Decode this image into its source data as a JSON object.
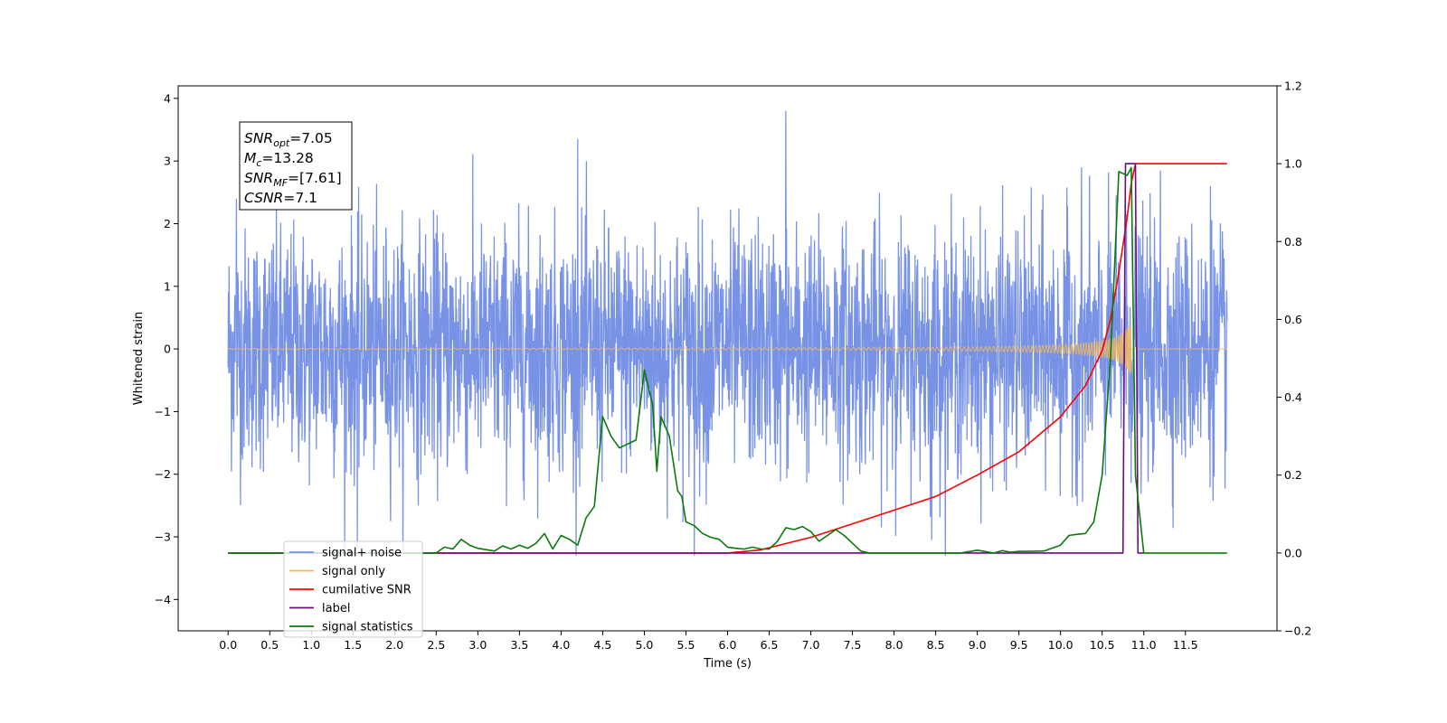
{
  "chart_data": {
    "type": "line",
    "xlabel": "Time (s)",
    "ylabel_left": "Whitened strain",
    "ylabel_right": "",
    "xlim": [
      -0.6,
      12.6
    ],
    "ylim_left": [
      -4.5,
      4.2
    ],
    "ylim_right": [
      -0.2,
      1.2
    ],
    "x_ticks": [
      0.0,
      0.5,
      1.0,
      1.5,
      2.0,
      2.5,
      3.0,
      3.5,
      4.0,
      4.5,
      5.0,
      5.5,
      6.0,
      6.5,
      7.0,
      7.5,
      8.0,
      8.5,
      9.0,
      9.5,
      10.0,
      10.5,
      11.0,
      11.5
    ],
    "x_tick_labels": [
      "0.0",
      "0.5",
      "1.0",
      "1.5",
      "2.0",
      "2.5",
      "3.0",
      "3.5",
      "4.0",
      "4.5",
      "5.0",
      "5.5",
      "6.0",
      "6.5",
      "7.0",
      "7.5",
      "8.0",
      "8.5",
      "9.0",
      "9.5",
      "10.0",
      "10.5",
      "11.0",
      "11.5"
    ],
    "y_ticks_left": [
      -4,
      -3,
      -2,
      -1,
      0,
      1,
      2,
      3,
      4
    ],
    "y_tick_labels_left": [
      "−4",
      "−3",
      "−2",
      "−1",
      "0",
      "1",
      "2",
      "3",
      "4"
    ],
    "y_ticks_right": [
      -0.2,
      0.0,
      0.2,
      0.4,
      0.6,
      0.8,
      1.0,
      1.2
    ],
    "y_tick_labels_right": [
      "−0.2",
      "0.0",
      "0.2",
      "0.4",
      "0.6",
      "0.8",
      "1.0",
      "1.2"
    ],
    "grid": false,
    "legend_position": "lower-left",
    "annotation": {
      "lines": [
        {
          "var": "SNR",
          "sub": "opt",
          "value": "=7.05"
        },
        {
          "var": "M",
          "sub": "c",
          "value": "=13.28"
        },
        {
          "var": "SNR",
          "sub": "MF",
          "value": "=[7.61]"
        },
        {
          "var": "CSNR",
          "sub": "",
          "value": "=7.1"
        }
      ]
    },
    "series": [
      {
        "name": "signal+ noise",
        "axis": "left",
        "color": "#7893e6",
        "kind": "noise",
        "x_range": [
          0.0,
          12.0
        ],
        "approx_std": 0.95,
        "approx_peak": [
          -3.3,
          3.8
        ],
        "peaks": [
          [
            0.1,
            2.4
          ],
          [
            1.55,
            -3.2
          ],
          [
            4.2,
            3.35
          ],
          [
            5.6,
            -3.3
          ],
          [
            6.7,
            3.8
          ],
          [
            8.45,
            -3.05
          ],
          [
            10.25,
            2.9
          ],
          [
            11.2,
            2.85
          ],
          [
            11.8,
            2.6
          ]
        ]
      },
      {
        "name": "signal only",
        "axis": "left",
        "color": "#f5b85a",
        "kind": "chirp",
        "x_range": [
          0.0,
          12.0
        ],
        "merger_time": 10.85,
        "peak_amplitude": 0.45
      },
      {
        "name": "cumilative SNR",
        "axis": "right",
        "color": "#ff0000",
        "x": [
          0.0,
          6.0,
          6.4,
          7.0,
          7.5,
          8.0,
          8.5,
          9.0,
          9.5,
          10.0,
          10.3,
          10.5,
          10.6,
          10.7,
          10.8,
          10.85,
          10.9,
          12.0
        ],
        "y": [
          0.0,
          0.0,
          0.008,
          0.04,
          0.075,
          0.11,
          0.145,
          0.2,
          0.26,
          0.35,
          0.43,
          0.52,
          0.6,
          0.72,
          0.86,
          0.95,
          1.0,
          1.0
        ]
      },
      {
        "name": "label",
        "axis": "right",
        "color": "#6a0d83",
        "x": [
          0.0,
          10.75,
          10.78,
          10.9,
          10.93,
          11.0
        ],
        "y": [
          0.0,
          0.0,
          1.0,
          1.0,
          0.0,
          0.0
        ]
      },
      {
        "name": "signal statistics",
        "axis": "right",
        "color": "#0a7a0a",
        "x": [
          0.0,
          2.5,
          2.6,
          2.7,
          2.8,
          2.9,
          3.0,
          3.2,
          3.3,
          3.4,
          3.5,
          3.6,
          3.7,
          3.8,
          3.9,
          4.0,
          4.1,
          4.2,
          4.3,
          4.4,
          4.5,
          4.6,
          4.7,
          4.8,
          4.9,
          5.0,
          5.1,
          5.15,
          5.2,
          5.3,
          5.4,
          5.45,
          5.5,
          5.6,
          5.7,
          5.8,
          5.9,
          6.0,
          6.1,
          6.2,
          6.3,
          6.4,
          6.5,
          6.6,
          6.7,
          6.8,
          6.9,
          7.0,
          7.1,
          7.2,
          7.3,
          7.4,
          7.5,
          7.6,
          7.7,
          8.0,
          8.5,
          8.8,
          9.0,
          9.2,
          9.3,
          9.4,
          9.5,
          9.6,
          9.8,
          10.0,
          10.1,
          10.2,
          10.3,
          10.4,
          10.5,
          10.6,
          10.7,
          10.8,
          10.85,
          10.9,
          11.0,
          12.0
        ],
        "y": [
          0.0,
          0.0,
          0.015,
          0.01,
          0.035,
          0.02,
          0.012,
          0.005,
          0.018,
          0.01,
          0.02,
          0.012,
          0.025,
          0.05,
          0.01,
          0.045,
          0.035,
          0.02,
          0.09,
          0.12,
          0.35,
          0.3,
          0.27,
          0.28,
          0.29,
          0.47,
          0.38,
          0.21,
          0.35,
          0.3,
          0.16,
          0.145,
          0.08,
          0.07,
          0.05,
          0.04,
          0.035,
          0.015,
          0.012,
          0.01,
          0.015,
          0.01,
          0.01,
          0.03,
          0.065,
          0.06,
          0.068,
          0.055,
          0.03,
          0.045,
          0.06,
          0.045,
          0.025,
          0.005,
          0.0,
          0.0,
          0.0,
          0.0,
          0.007,
          0.0,
          0.006,
          0.002,
          0.004,
          0.004,
          0.005,
          0.02,
          0.045,
          0.048,
          0.05,
          0.08,
          0.2,
          0.5,
          0.98,
          0.97,
          0.99,
          0.2,
          0.0,
          0.0
        ]
      }
    ]
  }
}
